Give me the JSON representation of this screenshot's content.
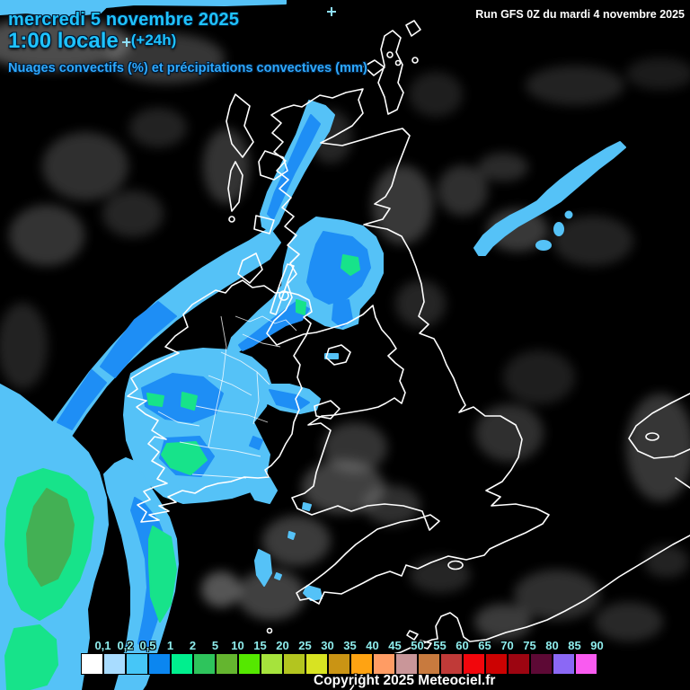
{
  "header": {
    "date_line": "mercredi 5 novembre 2025",
    "time_line": "1:00 locale",
    "offset_label": "(+24h)",
    "subtitle": "Nuages convectifs (%) et précipitations convectives (mm)",
    "run_info": "Run GFS 0Z du mardi 4 novembre 2025"
  },
  "footer": {
    "copyright": "Copyright 2025 Meteociel.fr"
  },
  "scale": {
    "labels": [
      "0,1",
      "0,2",
      "0,5",
      "1",
      "2",
      "5",
      "10",
      "15",
      "20",
      "25",
      "30",
      "35",
      "40",
      "45",
      "50",
      "55",
      "60",
      "65",
      "70",
      "75",
      "80",
      "85",
      "90"
    ],
    "colors": [
      "#FFFFFF",
      "#A8DCFF",
      "#46C6F7",
      "#0B86F0",
      "#00EF8E",
      "#2EC45C",
      "#64B52F",
      "#55E800",
      "#A6E33C",
      "#B3C51F",
      "#D8E322",
      "#CA9414",
      "#FFA312",
      "#FF9C64",
      "#C99699",
      "#C87A3E",
      "#C03A38",
      "#F2060C",
      "#CC0202",
      "#9C0511",
      "#5D0935",
      "#8B68F5",
      "#F95BF0"
    ]
  },
  "palette": {
    "background": "#000000",
    "coastline": "#FFFFFF",
    "precip_light": "#55C2F7",
    "precip_mid": "#1E8EF5",
    "precip_heavy": "#17E38A",
    "precip_intense": "#43B054",
    "title_color": "#1FC3FF",
    "subtitle_color": "#2EA9FF",
    "label_color": "#8EECEC"
  }
}
